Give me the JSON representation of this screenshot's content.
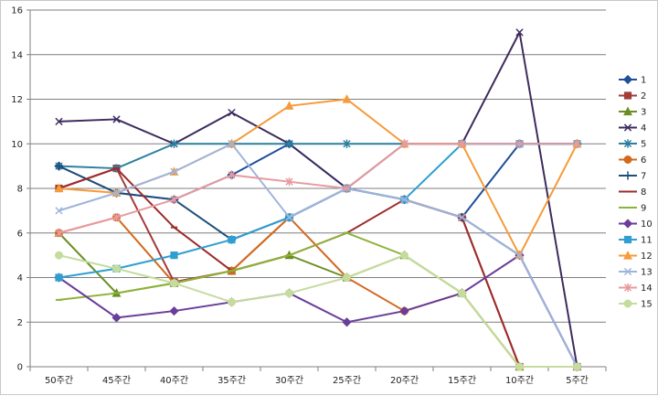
{
  "chart_data": {
    "type": "line",
    "title": "",
    "xlabel": "",
    "ylabel": "",
    "categories": [
      "50주간",
      "45주간",
      "40주간",
      "35주간",
      "30주간",
      "25주간",
      "20주간",
      "15주간",
      "10주간",
      "5주간"
    ],
    "ylim": [
      0,
      16
    ],
    "yticks": [
      0,
      2,
      4,
      6,
      8,
      10,
      12,
      14,
      16
    ],
    "grid": "horizontal",
    "legend_position": "right",
    "series": [
      {
        "name": "1",
        "color": "#1f4e9a",
        "marker": "diamond",
        "values": [
          9,
          7.8,
          7.5,
          8.6,
          10,
          8,
          7.5,
          6.7,
          10,
          10
        ]
      },
      {
        "name": "2",
        "color": "#a33b3b",
        "marker": "square",
        "values": [
          8,
          8.9,
          3.8,
          4.3,
          6.7,
          8,
          7.5,
          6.7,
          0,
          0
        ]
      },
      {
        "name": "3",
        "color": "#6b8e23",
        "marker": "triangle",
        "values": [
          6,
          3.3,
          3.75,
          4.3,
          5,
          4,
          5,
          3.3,
          0,
          0
        ]
      },
      {
        "name": "4",
        "color": "#3d2b5e",
        "marker": "x",
        "values": [
          11,
          11.1,
          10,
          11.4,
          10,
          8,
          10,
          10,
          15,
          0
        ]
      },
      {
        "name": "5",
        "color": "#2c7f9e",
        "marker": "star",
        "values": [
          9,
          8.9,
          10,
          10,
          10,
          10,
          10,
          10,
          10,
          10
        ]
      },
      {
        "name": "6",
        "color": "#d2691e",
        "marker": "circle",
        "values": [
          6,
          6.7,
          3.75,
          4.3,
          6.7,
          4,
          2.5,
          3.3,
          0,
          0
        ]
      },
      {
        "name": "7",
        "color": "#1f4e79",
        "marker": "plus",
        "values": [
          9,
          7.8,
          7.5,
          5.7,
          6.7,
          8,
          7.5,
          6.7,
          5,
          0
        ]
      },
      {
        "name": "8",
        "color": "#9e2a2a",
        "marker": "dash",
        "values": [
          8,
          8.9,
          6.25,
          4.3,
          5,
          6,
          7.5,
          6.7,
          0,
          0
        ]
      },
      {
        "name": "9",
        "color": "#8db33a",
        "marker": "dash",
        "values": [
          3,
          3.3,
          3.75,
          4.3,
          5,
          6,
          5,
          3.3,
          0,
          0
        ]
      },
      {
        "name": "10",
        "color": "#6a3d9a",
        "marker": "diamond",
        "values": [
          4,
          2.2,
          2.5,
          2.9,
          3.3,
          2,
          2.5,
          3.3,
          5,
          0
        ]
      },
      {
        "name": "11",
        "color": "#2e9fd0",
        "marker": "square",
        "values": [
          4,
          4.4,
          5,
          5.7,
          6.7,
          8,
          7.5,
          10,
          10,
          10
        ]
      },
      {
        "name": "12",
        "color": "#f59b3a",
        "marker": "triangle",
        "values": [
          8,
          7.8,
          8.75,
          10,
          11.7,
          12,
          10,
          10,
          5,
          10
        ]
      },
      {
        "name": "13",
        "color": "#9fb4dc",
        "marker": "x",
        "values": [
          7,
          7.8,
          8.75,
          10,
          6.7,
          8,
          7.5,
          6.7,
          5,
          0
        ]
      },
      {
        "name": "14",
        "color": "#e79aa0",
        "marker": "star",
        "values": [
          6,
          6.7,
          7.5,
          8.6,
          8.3,
          8,
          10,
          10,
          10,
          10
        ]
      },
      {
        "name": "15",
        "color": "#c5dc9e",
        "marker": "circle",
        "values": [
          5,
          4.4,
          3.75,
          2.9,
          3.3,
          4,
          5,
          3.3,
          0,
          0
        ]
      }
    ]
  }
}
